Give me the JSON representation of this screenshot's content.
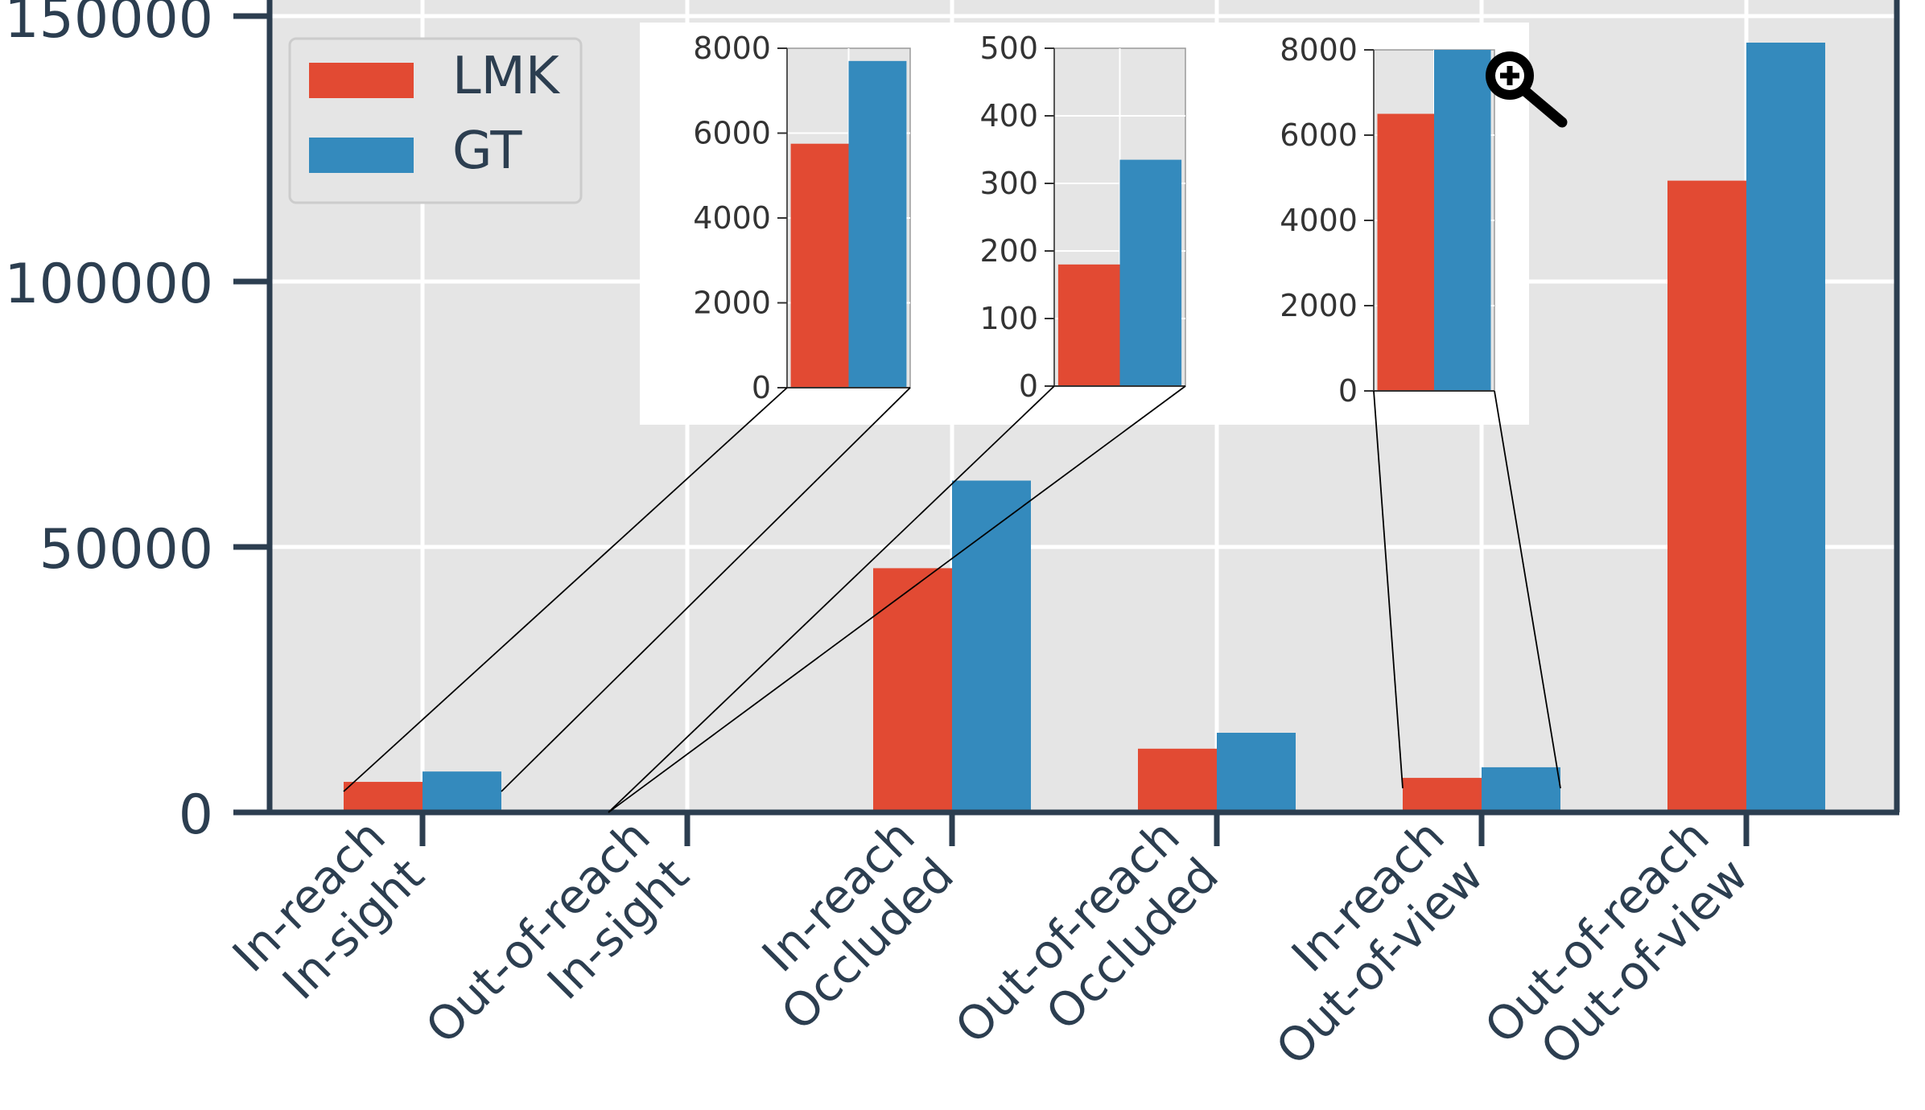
{
  "chart_data": {
    "type": "bar",
    "categories": [
      [
        "In-reach",
        "In-sight"
      ],
      [
        "Out-of-reach",
        "In-sight"
      ],
      [
        "In-reach",
        "Occluded"
      ],
      [
        "Out-of-reach",
        "Occluded"
      ],
      [
        "In-reach",
        "Out-of-view"
      ],
      [
        "Out-of-reach",
        "Out-of-view"
      ]
    ],
    "series": [
      {
        "name": "LMK",
        "color": "#e24a33",
        "values": [
          5750,
          180,
          46000,
          12000,
          6500,
          119000
        ]
      },
      {
        "name": "GT",
        "color": "#348abd",
        "values": [
          7700,
          335,
          62500,
          15000,
          8500,
          145000
        ]
      }
    ],
    "ylim": [
      0,
      150000
    ],
    "yticks": [
      0,
      50000,
      100000,
      150000
    ],
    "grid": true,
    "legend": "top-left",
    "background": "#e5e5e5",
    "axis_color": "#2c3e50",
    "insets": [
      {
        "category_index": 0,
        "ylim": [
          0,
          8000
        ],
        "yticks": [
          0,
          2000,
          4000,
          6000,
          8000
        ]
      },
      {
        "category_index": 1,
        "ylim": [
          0,
          500
        ],
        "yticks": [
          0,
          100,
          200,
          300,
          400,
          500
        ]
      },
      {
        "category_index": 4,
        "ylim": [
          0,
          8000
        ],
        "yticks": [
          0,
          2000,
          4000,
          6000,
          8000
        ]
      }
    ]
  },
  "toolbar": {
    "zoom_icon": "zoom-in-magnifier-icon"
  }
}
